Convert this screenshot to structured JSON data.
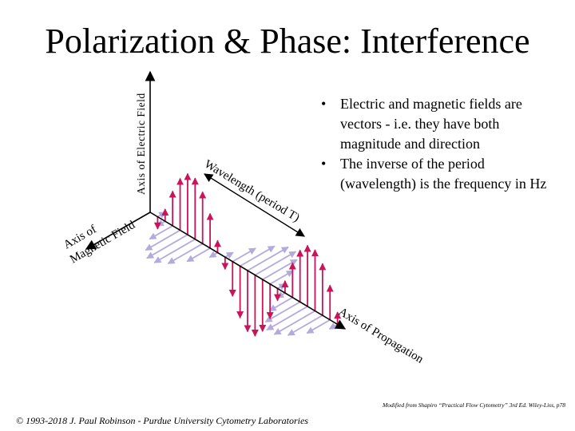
{
  "slide": {
    "title": "Polarization & Phase: Interference",
    "credit": "Modified from Shapiro “Practical Flow Cytometry” 3rd Ed. Wiley-Liss, p78",
    "footer": "© 1993-2018 J. Paul Robinson - Purdue University Cytometry Laboratories"
  },
  "diagram": {
    "axis_electric": "Axis of Electric Field",
    "axis_magnetic_line1": "Axis of",
    "axis_magnetic_line2": "Magnetic Field",
    "wavelength_label": "Wavelength (period T)",
    "propagation_label": "Axis of Propagation"
  },
  "bullets": {
    "marker": "•",
    "items": [
      "Electric and magnetic fields are vectors - i.e. they have both magnitude and direction",
      "The inverse of the period (wavelength) is the frequency in Hz"
    ]
  },
  "colors": {
    "electric_arrows": "#c8145a",
    "magnetic_arrows": "#b4aadc",
    "axes": "#000000"
  }
}
